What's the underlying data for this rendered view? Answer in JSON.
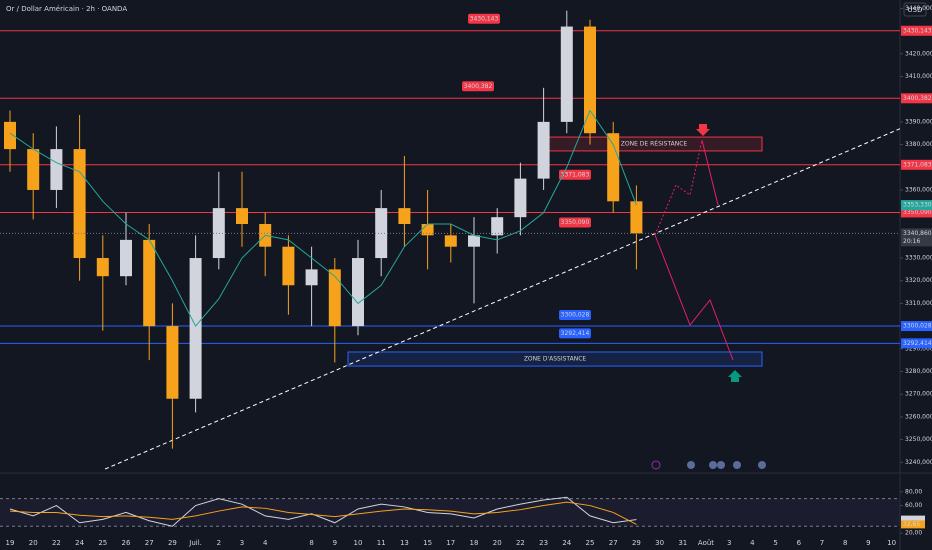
{
  "chart_data": {
    "type": "candlestick",
    "title": "Or / Dollar Américain · 2h · OANDA",
    "currency": "USD",
    "categories": [
      "19",
      "20",
      "22",
      "24",
      "25",
      "26",
      "27",
      "29",
      "Juil.",
      "2",
      "3",
      "4",
      null,
      "8",
      "9",
      "10",
      "11",
      "13",
      "15",
      "17",
      "18",
      "20",
      "22",
      "23",
      "24",
      "25",
      "27",
      "29",
      "30",
      "31",
      "Août",
      "3",
      "4",
      "5",
      "6",
      "7",
      "8",
      "9",
      "10"
    ],
    "open": [
      3390,
      3378,
      3360,
      3378,
      3330,
      3322,
      3338,
      3300,
      3268,
      3330,
      3352,
      3345,
      3335,
      3318,
      3325,
      3300,
      3330,
      3352,
      3345,
      3340,
      3335,
      3340,
      3348,
      3365,
      3390,
      3432,
      3385,
      3355,
      null,
      null,
      null,
      null,
      null,
      null,
      null,
      null,
      null,
      null,
      null
    ],
    "high": [
      3395,
      3385,
      3388,
      3393,
      3340,
      3350,
      3345,
      3310,
      3340,
      3368,
      3368,
      3350,
      3340,
      3335,
      3330,
      3338,
      3360,
      3375,
      3360,
      3345,
      3348,
      3352,
      3372,
      3405,
      3439,
      3435,
      3390,
      3362,
      null,
      null,
      null,
      null,
      null,
      null,
      null,
      null,
      null,
      null,
      null
    ],
    "low": [
      3368,
      3347,
      3352,
      3320,
      3298,
      3318,
      3285,
      3246,
      3262,
      3325,
      3335,
      3322,
      3305,
      3300,
      3284,
      3296,
      3322,
      3335,
      3325,
      3328,
      3310,
      3332,
      3340,
      3360,
      3385,
      3380,
      3350,
      3325,
      null,
      null,
      null,
      null,
      null,
      null,
      null,
      null,
      null,
      null,
      null
    ],
    "close": [
      3378,
      3360,
      3378,
      3330,
      3322,
      3338,
      3300,
      3268,
      3330,
      3352,
      3345,
      3335,
      3318,
      3325,
      3300,
      3330,
      3352,
      3345,
      3340,
      3335,
      3340,
      3348,
      3365,
      3390,
      3432,
      3385,
      3355,
      3340.86,
      null,
      null,
      null,
      null,
      null,
      null,
      null,
      null,
      null,
      null,
      null
    ],
    "up_color": "#d1d4dc",
    "down_color": "#f7a21b",
    "ma": {
      "color": "#26a69a",
      "values": [
        3385,
        3378,
        3372,
        3368,
        3355,
        3345,
        3338,
        3320,
        3300,
        3312,
        3330,
        3340,
        3338,
        3330,
        3322,
        3310,
        3318,
        3335,
        3345,
        3345,
        3340,
        3338,
        3342,
        3350,
        3370,
        3395,
        3380,
        3353.33,
        null,
        null,
        null,
        null,
        null,
        null,
        null,
        null,
        null,
        null,
        null
      ]
    },
    "ylim": [
      3236.6,
      3443.7
    ],
    "yticks": [
      {
        "value": 3240,
        "label": "3240,000"
      },
      {
        "value": 3250,
        "label": "3250,000"
      },
      {
        "value": 3260,
        "label": "3260,000"
      },
      {
        "value": 3270,
        "label": "3270,000"
      },
      {
        "value": 3280,
        "label": "3280,000"
      },
      {
        "value": 3290,
        "label": "3290,000"
      },
      {
        "value": 3310,
        "label": "3310,000"
      },
      {
        "value": 3320,
        "label": "3320,000"
      },
      {
        "value": 3330,
        "label": "3330,000"
      },
      {
        "value": 3360,
        "label": "3360,000"
      },
      {
        "value": 3380,
        "label": "3380,000"
      },
      {
        "value": 3390,
        "label": "3390,000"
      },
      {
        "value": 3410,
        "label": "3410,000"
      },
      {
        "value": 3420,
        "label": "3420,000"
      },
      {
        "value": 3440,
        "label": "3440,000"
      }
    ],
    "levels": [
      {
        "value": 3430.143,
        "label": "3430,143",
        "color": "#f23645"
      },
      {
        "value": 3400.382,
        "label": "3400,382",
        "color": "#f23645"
      },
      {
        "value": 3371.083,
        "label": "3371,083",
        "color": "#f23645"
      },
      {
        "value": 3350.09,
        "label": "3350,090",
        "color": "#f23645"
      },
      {
        "value": 3300.028,
        "label": "3300,028",
        "color": "#2962ff"
      },
      {
        "value": 3292.414,
        "label": "3292,414",
        "color": "#2962ff"
      }
    ],
    "zones": [
      {
        "label": "ZONE DE RÉSISTANCE",
        "top": 3383.3,
        "bottom": 3377.2,
        "color": "#f23645"
      },
      {
        "label": "ZONE D'ASSISTANCE",
        "top": 3288.6,
        "bottom": 3282.4,
        "color": "#2962ff"
      }
    ],
    "trendline": {
      "start": 3237,
      "end": 3387
    },
    "last": {
      "value": 3340.86,
      "label": "3340,860",
      "countdown": "20:16"
    },
    "ma_tag": {
      "value": 3353.33,
      "label": "3353,330"
    },
    "indicator": {
      "rsi": [
        55,
        45,
        60,
        35,
        40,
        50,
        38,
        30,
        60,
        70,
        62,
        45,
        40,
        48,
        35,
        55,
        62,
        58,
        50,
        48,
        42,
        55,
        62,
        68,
        72,
        45,
        35,
        39.59,
        null,
        null,
        null,
        null,
        null,
        null,
        null,
        null,
        null,
        null,
        null
      ],
      "rsi_color": "#d1d4dc",
      "ma": [
        52,
        50,
        50,
        46,
        44,
        45,
        43,
        40,
        45,
        52,
        58,
        56,
        50,
        47,
        44,
        48,
        52,
        55,
        54,
        52,
        48,
        50,
        54,
        60,
        65,
        60,
        50,
        32.65,
        null,
        null,
        null,
        null,
        null,
        null,
        null,
        null,
        null,
        null,
        null
      ],
      "ma_color": "#f7a21b",
      "ylim": [
        10,
        100
      ],
      "yticks": [
        {
          "value": 80,
          "label": "80,00"
        },
        {
          "value": 60,
          "label": "60,00"
        },
        {
          "value": 20,
          "label": "20,00"
        }
      ],
      "band": [
        30,
        70
      ],
      "tags": [
        {
          "value": 39.59,
          "label": "39,59",
          "color": "#d1d4dc"
        },
        {
          "value": 32.65,
          "label": "32,65",
          "color": "#f7a21b"
        }
      ]
    }
  }
}
